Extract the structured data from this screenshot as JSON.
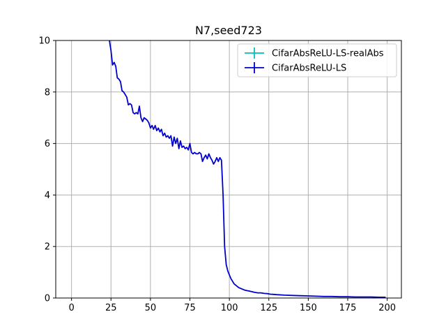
{
  "chart_data": {
    "type": "line",
    "title": "N7,seed723",
    "xlabel": "",
    "ylabel": "",
    "xlim": [
      -10,
      209
    ],
    "ylim": [
      0,
      10
    ],
    "xticks": [
      0,
      25,
      50,
      75,
      100,
      125,
      150,
      175,
      200
    ],
    "yticks": [
      0,
      2,
      4,
      6,
      8,
      10
    ],
    "grid": true,
    "legend_position": "top-right",
    "series": [
      {
        "name": "CifarAbsReLU-LS-realAbs",
        "color": "#00bfbf",
        "x": [],
        "y": []
      },
      {
        "name": "CifarAbsReLU-LS",
        "color": "#0000cc",
        "x": [
          23,
          24,
          25,
          26,
          27,
          28,
          29,
          30,
          31,
          32,
          33,
          34,
          35,
          36,
          37,
          38,
          39,
          40,
          41,
          42,
          43,
          44,
          45,
          46,
          47,
          48,
          49,
          50,
          51,
          52,
          53,
          54,
          55,
          56,
          57,
          58,
          59,
          60,
          61,
          62,
          63,
          64,
          65,
          66,
          67,
          68,
          69,
          70,
          71,
          72,
          73,
          74,
          75,
          76,
          77,
          78,
          79,
          80,
          81,
          82,
          83,
          84,
          85,
          86,
          87,
          88,
          89,
          90,
          91,
          92,
          93,
          94,
          95,
          96,
          97,
          98,
          99,
          100,
          101,
          102,
          103,
          104,
          105,
          106,
          108,
          110,
          112,
          114,
          116,
          118,
          120,
          122,
          124,
          126,
          128,
          130,
          135,
          140,
          145,
          150,
          155,
          160,
          165,
          170,
          175,
          180,
          185,
          190,
          195,
          199
        ],
        "y": [
          10.2,
          10.0,
          9.6,
          9.05,
          9.15,
          9.0,
          8.55,
          8.5,
          8.4,
          8.05,
          8.0,
          7.9,
          7.8,
          7.5,
          7.55,
          7.5,
          7.2,
          7.15,
          7.2,
          7.15,
          7.45,
          7.0,
          6.85,
          7.0,
          6.95,
          6.9,
          6.8,
          6.6,
          6.7,
          6.55,
          6.7,
          6.5,
          6.6,
          6.45,
          6.55,
          6.3,
          6.4,
          6.25,
          6.3,
          6.2,
          6.3,
          5.9,
          6.25,
          6.0,
          6.2,
          5.8,
          6.1,
          5.85,
          5.9,
          5.8,
          5.85,
          5.75,
          6.0,
          5.65,
          5.6,
          5.65,
          5.6,
          5.6,
          5.65,
          5.6,
          5.3,
          5.45,
          5.55,
          5.4,
          5.6,
          5.45,
          5.35,
          5.2,
          5.3,
          5.45,
          5.3,
          5.45,
          5.35,
          4.0,
          2.0,
          1.3,
          1.05,
          0.9,
          0.75,
          0.65,
          0.55,
          0.5,
          0.45,
          0.4,
          0.35,
          0.3,
          0.28,
          0.25,
          0.22,
          0.2,
          0.2,
          0.18,
          0.17,
          0.15,
          0.14,
          0.13,
          0.11,
          0.1,
          0.09,
          0.08,
          0.07,
          0.06,
          0.06,
          0.05,
          0.05,
          0.04,
          0.04,
          0.04,
          0.03,
          0.03
        ]
      }
    ]
  }
}
